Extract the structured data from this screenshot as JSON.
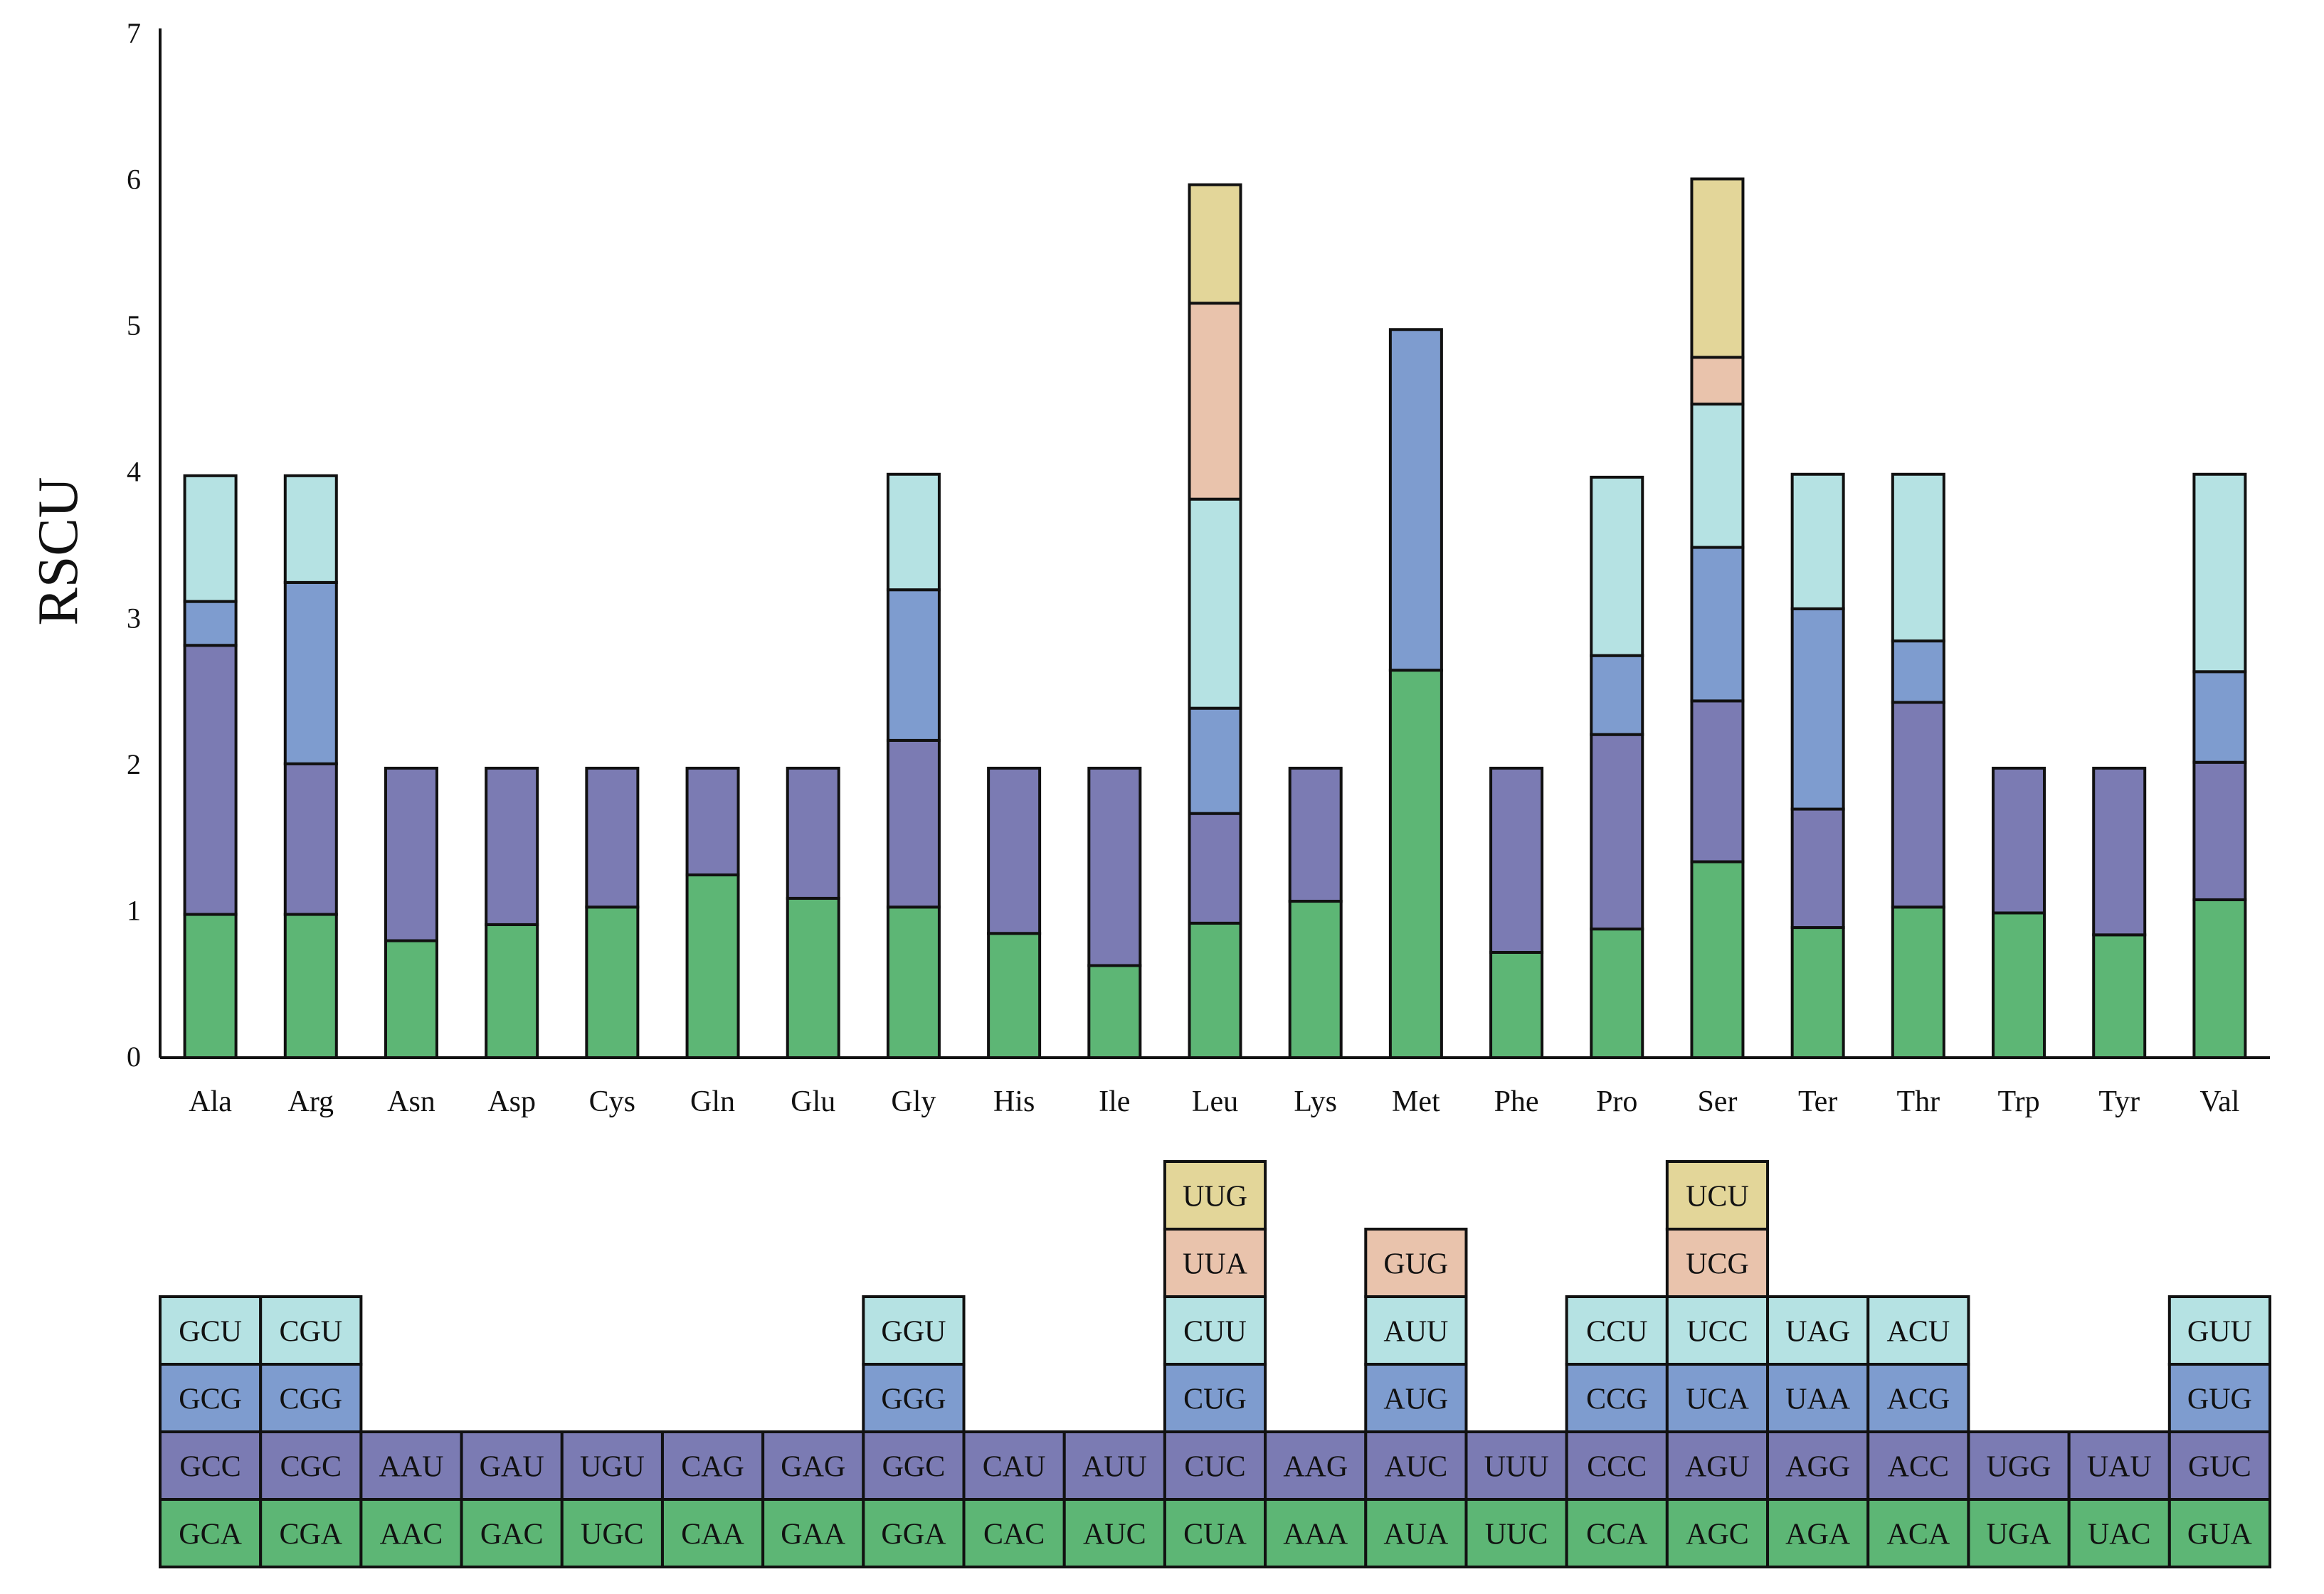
{
  "chart_data": {
    "type": "bar",
    "stacked": true,
    "title": "",
    "xlabel": "",
    "ylabel": "RSCU",
    "ylim": [
      0,
      7
    ],
    "yticks": [
      "0",
      "1",
      "2",
      "3",
      "4",
      "5",
      "6",
      "7"
    ],
    "colors": [
      "#5db675",
      "#7b7bb3",
      "#7e9ccf",
      "#b5e2e3",
      "#e9c3ac",
      "#e3d699"
    ],
    "categories": [
      {
        "name": "Ala",
        "codons": [
          "GCA",
          "GCC",
          "GCG",
          "GCU"
        ],
        "values": [
          0.98,
          1.84,
          0.3,
          0.86
        ]
      },
      {
        "name": "Arg",
        "codons": [
          "CGA",
          "CGC",
          "CGG",
          "CGU"
        ],
        "values": [
          0.98,
          1.03,
          1.24,
          0.73
        ]
      },
      {
        "name": "Asn",
        "codons": [
          "AAC",
          "AAU"
        ],
        "values": [
          0.8,
          1.18
        ]
      },
      {
        "name": "Asp",
        "codons": [
          "GAC",
          "GAU"
        ],
        "values": [
          0.91,
          1.07
        ]
      },
      {
        "name": "Cys",
        "codons": [
          "UGC",
          "UGU"
        ],
        "values": [
          1.03,
          0.95
        ]
      },
      {
        "name": "Gln",
        "codons": [
          "CAA",
          "CAG"
        ],
        "values": [
          1.25,
          0.73
        ]
      },
      {
        "name": "Glu",
        "codons": [
          "GAA",
          "GAG"
        ],
        "values": [
          1.09,
          0.89
        ]
      },
      {
        "name": "Gly",
        "codons": [
          "GGA",
          "GGC",
          "GGG",
          "GGU"
        ],
        "values": [
          1.03,
          1.14,
          1.03,
          0.79
        ]
      },
      {
        "name": "His",
        "codons": [
          "CAC",
          "CAU"
        ],
        "values": [
          0.85,
          1.13
        ]
      },
      {
        "name": "Ile",
        "codons": [
          "AUC",
          "AUU"
        ],
        "values": [
          0.63,
          1.35
        ]
      },
      {
        "name": "Leu",
        "codons": [
          "CUA",
          "CUC",
          "CUG",
          "CUU",
          "UUA",
          "UUG"
        ],
        "values": [
          0.92,
          0.75,
          0.72,
          1.43,
          1.34,
          0.81
        ]
      },
      {
        "name": "Lys",
        "codons": [
          "AAA",
          "AAG"
        ],
        "values": [
          1.07,
          0.91
        ]
      },
      {
        "name": "Met",
        "codons": [
          "AUA",
          "AUC",
          "AUG",
          "AUU",
          "GUG"
        ],
        "values": [
          2.65,
          0.0,
          2.33,
          0.0,
          0.0
        ]
      },
      {
        "name": "Phe",
        "codons": [
          "UUC",
          "UUU"
        ],
        "values": [
          0.72,
          1.26
        ]
      },
      {
        "name": "Pro",
        "codons": [
          "CCA",
          "CCC",
          "CCG",
          "CCU"
        ],
        "values": [
          0.88,
          1.33,
          0.54,
          1.22
        ]
      },
      {
        "name": "Ser",
        "codons": [
          "AGC",
          "AGU",
          "UCA",
          "UCC",
          "UCG",
          "UCU"
        ],
        "values": [
          1.34,
          1.1,
          1.05,
          0.98,
          0.32,
          1.22
        ]
      },
      {
        "name": "Ter",
        "codons": [
          "AGA",
          "AGG",
          "UAA",
          "UAG"
        ],
        "values": [
          0.89,
          0.81,
          1.37,
          0.92
        ]
      },
      {
        "name": "Thr",
        "codons": [
          "ACA",
          "ACC",
          "ACG",
          "ACU"
        ],
        "values": [
          1.03,
          1.4,
          0.42,
          1.14
        ]
      },
      {
        "name": "Trp",
        "codons": [
          "UGA",
          "UGG"
        ],
        "values": [
          0.99,
          0.99
        ]
      },
      {
        "name": "Tyr",
        "codons": [
          "UAC",
          "UAU"
        ],
        "values": [
          0.84,
          1.14
        ]
      },
      {
        "name": "Val",
        "codons": [
          "GUA",
          "GUC",
          "GUG",
          "GUU"
        ],
        "values": [
          1.08,
          0.94,
          0.62,
          1.35
        ]
      }
    ]
  }
}
